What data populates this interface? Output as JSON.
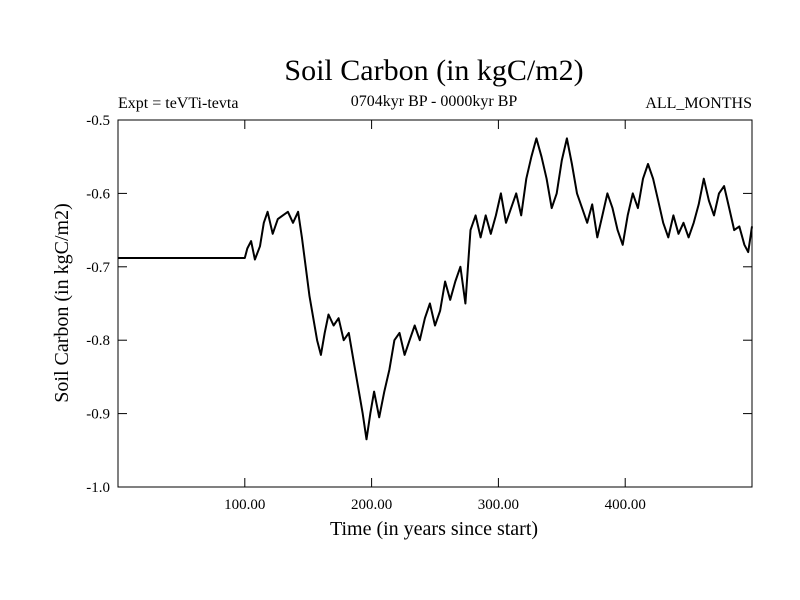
{
  "chart_data": {
    "type": "line",
    "title": "Soil Carbon (in kgC/m2)",
    "subtitle_left": "Expt = teVTi-tevta",
    "subtitle_center": "0704kyr BP - 0000kyr BP",
    "subtitle_right": "ALL_MONTHS",
    "xlabel": "Time (in years since start)",
    "ylabel": "Soil Carbon (in kgC/m2)",
    "xlim": [
      0,
      500
    ],
    "ylim": [
      -1.0,
      -0.5
    ],
    "x_ticks": [
      100,
      200,
      300,
      400
    ],
    "x_tick_labels": [
      "100.00",
      "200.00",
      "300.00",
      "400.00"
    ],
    "y_ticks": [
      -0.5,
      -0.6,
      -0.7,
      -0.8,
      -0.9,
      -1.0
    ],
    "y_tick_labels": [
      "-0.5",
      "-0.6",
      "-0.7",
      "-0.8",
      "-0.9",
      "-1.0"
    ],
    "grid": false,
    "line_color": "#000000",
    "series": [
      {
        "x": [
          0,
          100,
          102,
          105,
          108,
          112,
          115,
          118,
          122,
          126,
          130,
          134,
          138,
          142,
          145,
          148,
          151,
          154,
          157,
          160,
          163,
          166,
          170,
          174,
          178,
          182,
          186,
          190,
          193,
          196,
          199,
          202,
          206,
          210,
          214,
          218,
          222,
          226,
          230,
          234,
          238,
          242,
          246,
          250,
          254,
          258,
          262,
          266,
          270,
          274,
          278,
          282,
          286,
          290,
          294,
          298,
          302,
          306,
          310,
          314,
          318,
          322,
          326,
          330,
          334,
          338,
          342,
          346,
          350,
          354,
          358,
          362,
          366,
          370,
          374,
          378,
          382,
          386,
          390,
          394,
          398,
          402,
          406,
          410,
          414,
          418,
          422,
          426,
          430,
          434,
          438,
          442,
          446,
          450,
          454,
          458,
          462,
          466,
          470,
          474,
          478,
          482,
          486,
          490,
          494,
          497,
          500
        ],
        "y": [
          -0.688,
          -0.688,
          -0.675,
          -0.665,
          -0.69,
          -0.672,
          -0.64,
          -0.625,
          -0.655,
          -0.635,
          -0.63,
          -0.625,
          -0.64,
          -0.625,
          -0.66,
          -0.7,
          -0.74,
          -0.77,
          -0.8,
          -0.82,
          -0.79,
          -0.765,
          -0.78,
          -0.77,
          -0.8,
          -0.79,
          -0.83,
          -0.87,
          -0.9,
          -0.935,
          -0.9,
          -0.87,
          -0.905,
          -0.87,
          -0.84,
          -0.8,
          -0.79,
          -0.82,
          -0.8,
          -0.78,
          -0.8,
          -0.77,
          -0.75,
          -0.78,
          -0.76,
          -0.72,
          -0.745,
          -0.72,
          -0.7,
          -0.75,
          -0.65,
          -0.63,
          -0.66,
          -0.63,
          -0.655,
          -0.63,
          -0.6,
          -0.64,
          -0.62,
          -0.6,
          -0.63,
          -0.58,
          -0.55,
          -0.525,
          -0.55,
          -0.58,
          -0.62,
          -0.6,
          -0.555,
          -0.525,
          -0.56,
          -0.6,
          -0.62,
          -0.64,
          -0.615,
          -0.66,
          -0.63,
          -0.6,
          -0.62,
          -0.65,
          -0.67,
          -0.63,
          -0.6,
          -0.62,
          -0.58,
          -0.56,
          -0.58,
          -0.61,
          -0.64,
          -0.66,
          -0.63,
          -0.655,
          -0.64,
          -0.66,
          -0.64,
          -0.615,
          -0.58,
          -0.61,
          -0.63,
          -0.6,
          -0.59,
          -0.62,
          -0.65,
          -0.645,
          -0.67,
          -0.68,
          -0.645
        ]
      }
    ]
  }
}
